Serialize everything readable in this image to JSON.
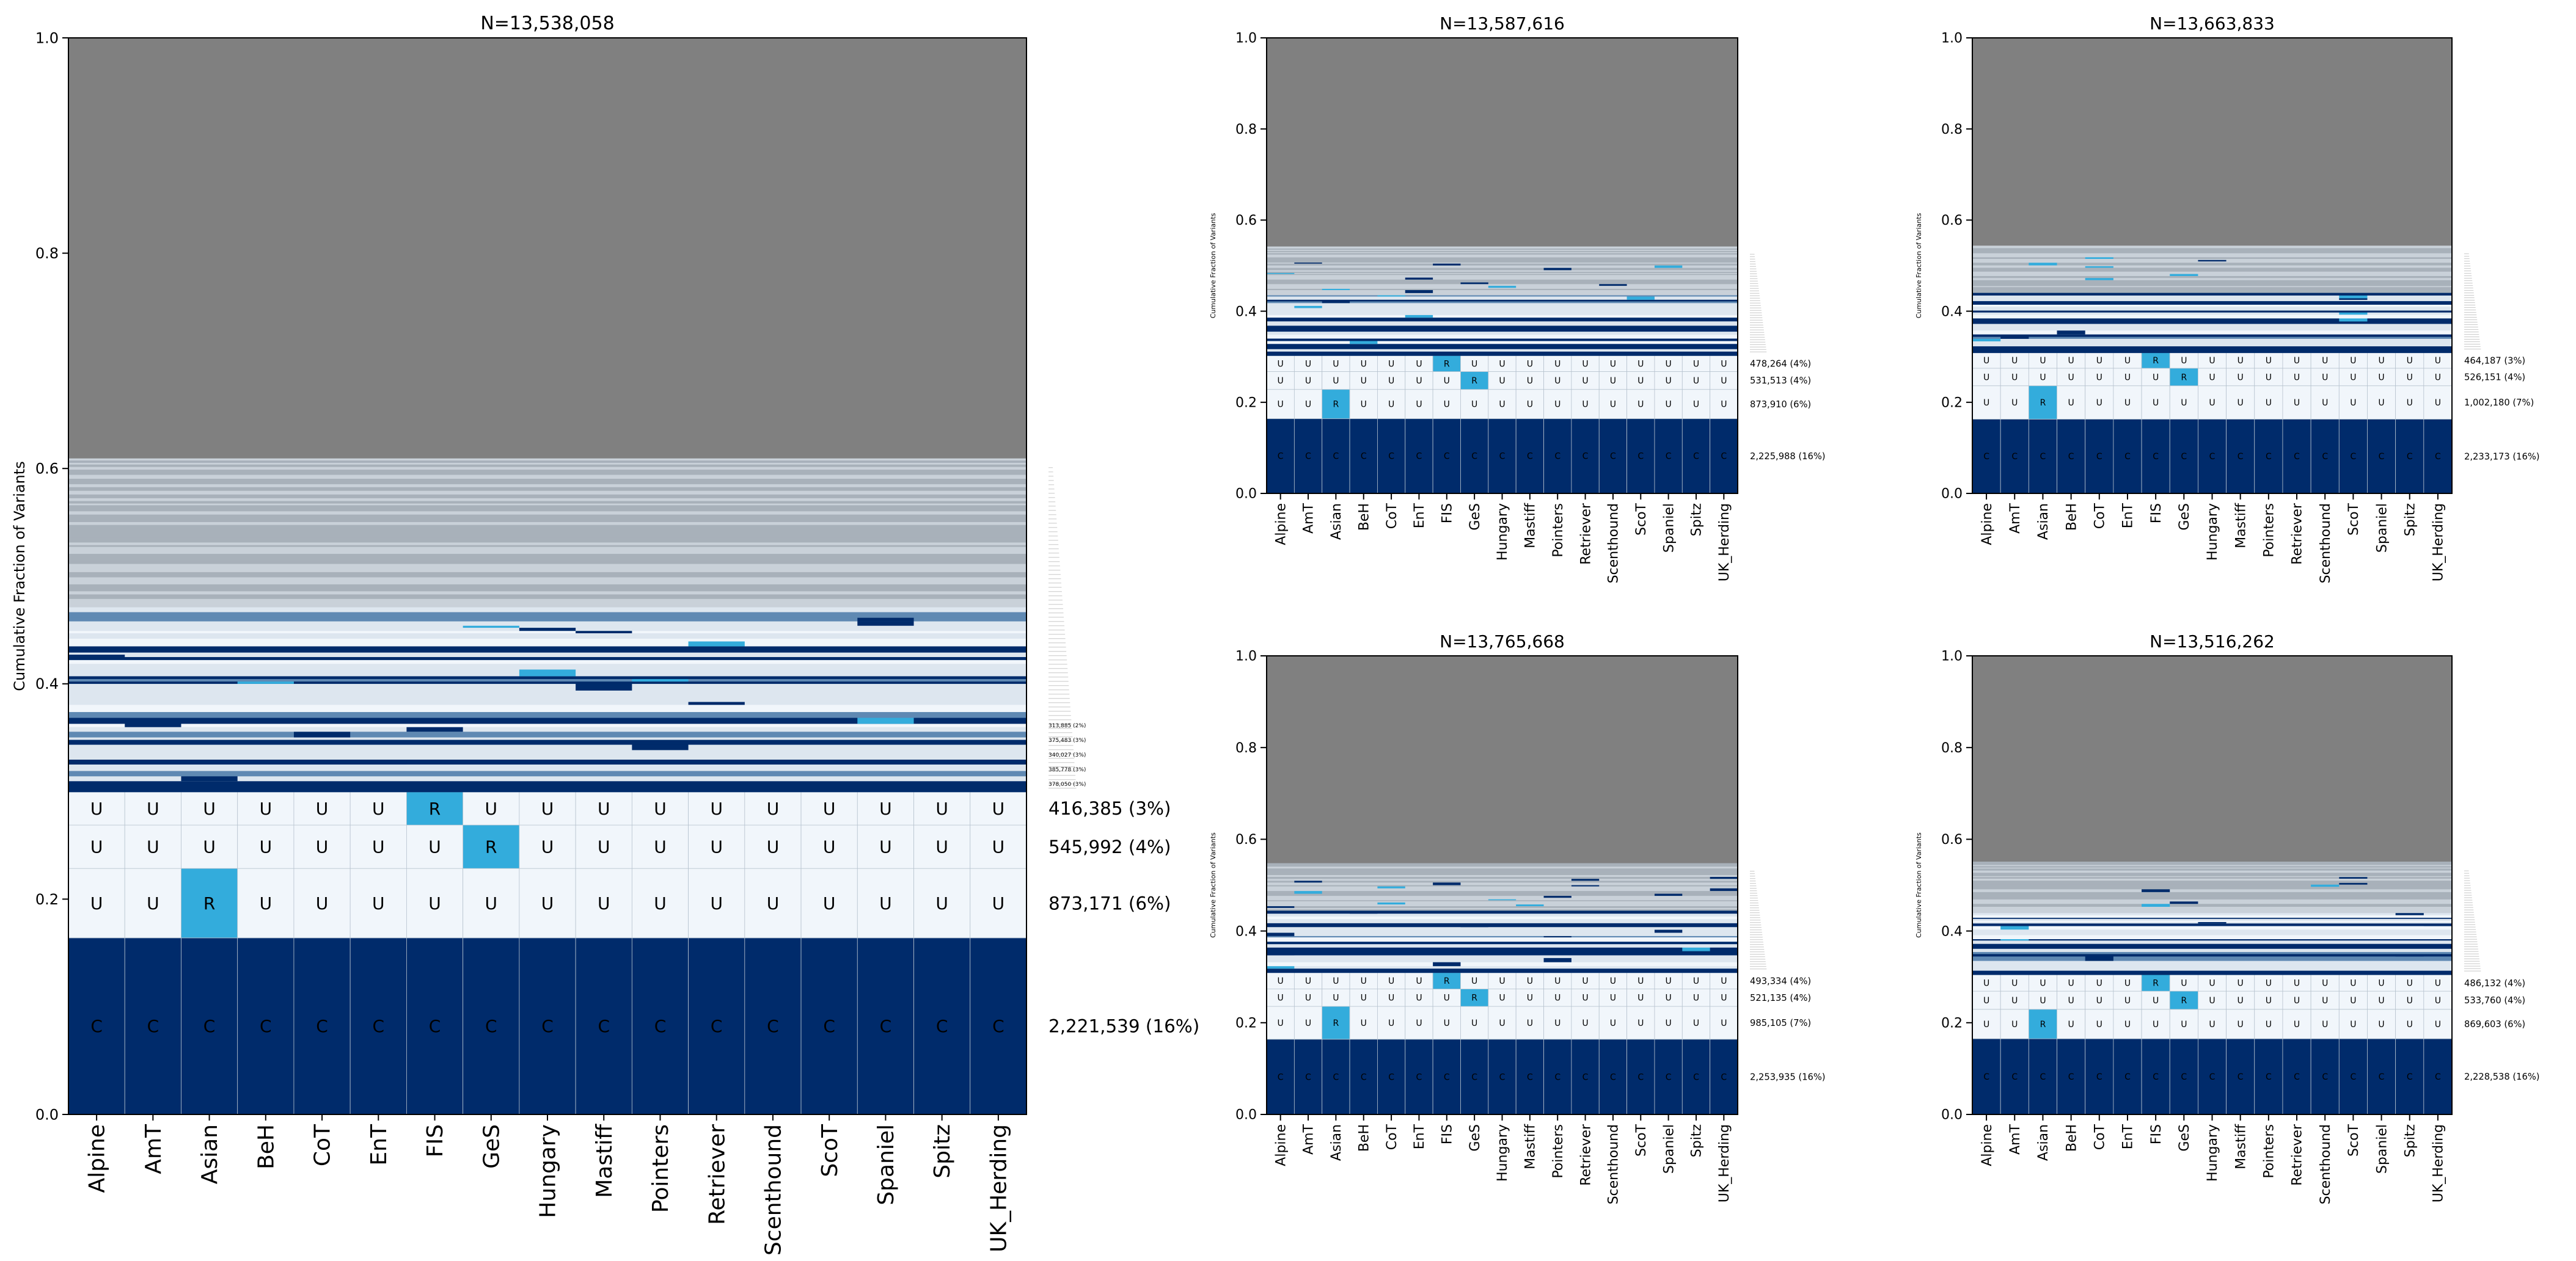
{
  "figure": {
    "ylabel": "Cumulative Fraction of Variants",
    "yticks": [
      "0.0",
      "0.2",
      "0.4",
      "0.6",
      "0.8",
      "1.0"
    ]
  },
  "chart_data": [
    {
      "type": "stacked-bar-heatmap",
      "title": "N=13,538,058",
      "ylabel": "Cumulative Fraction of Variants",
      "ylim": [
        0,
        1
      ],
      "categories": [
        "Alpine",
        "AmT",
        "Asian",
        "BeH",
        "CoT",
        "EnT",
        "FIS",
        "GeS",
        "Hungary",
        "Mastiff",
        "Pointers",
        "Retriever",
        "Scenthound",
        "ScoT",
        "Spaniel",
        "Spitz",
        "UK_Herding"
      ],
      "segments": [
        {
          "name": "common",
          "fraction": 0.164,
          "label": "2,221,539 (16%)",
          "pattern": "all-C",
          "letter": "C"
        },
        {
          "name": "asian-specific",
          "fraction": 0.0645,
          "label": "873,171 (6%)",
          "pattern": "R-at-Asian",
          "letter": "U",
          "rare_index": 2
        },
        {
          "name": "ges-specific",
          "fraction": 0.0403,
          "label": "545,992 (4%)",
          "pattern": "R-at-GeS",
          "letter": "U",
          "rare_index": 7
        },
        {
          "name": "fis-specific",
          "fraction": 0.0308,
          "label": "416,385 (3%)",
          "pattern": "R-at-FIS",
          "letter": "U",
          "rare_index": 6
        }
      ],
      "small_labels": [
        "378,050 (3%)",
        "385,778 (3%)",
        "340,027 (3%)",
        "375,483 (3%)",
        "313,885 (2%)"
      ]
    },
    {
      "type": "stacked-bar-heatmap",
      "title": "N=13,587,616",
      "ylabel": "Cumulative Fraction of Variants",
      "ylim": [
        0,
        1
      ],
      "categories": [
        "Alpine",
        "AmT",
        "Asian",
        "BeH",
        "CoT",
        "EnT",
        "FIS",
        "GeS",
        "Hungary",
        "Mastiff",
        "Pointers",
        "Retriever",
        "Scenthound",
        "ScoT",
        "Spaniel",
        "Spitz",
        "UK_Herding"
      ],
      "segments": [
        {
          "name": "common",
          "fraction": 0.164,
          "label": "2,225,988 (16%)",
          "pattern": "all-C",
          "letter": "C"
        },
        {
          "name": "asian-specific",
          "fraction": 0.0643,
          "label": "873,910 (6%)",
          "pattern": "R-at-Asian",
          "letter": "U",
          "rare_index": 2
        },
        {
          "name": "ges-specific",
          "fraction": 0.0391,
          "label": "531,513 (4%)",
          "pattern": "R-at-GeS",
          "letter": "U",
          "rare_index": 7
        },
        {
          "name": "fis-specific",
          "fraction": 0.0352,
          "label": "478,264 (4%)",
          "pattern": "R-at-FIS",
          "letter": "U",
          "rare_index": 6
        }
      ]
    },
    {
      "type": "stacked-bar-heatmap",
      "title": "N=13,663,833",
      "ylabel": "Cumulative Fraction of Variants",
      "ylim": [
        0,
        1
      ],
      "categories": [
        "Alpine",
        "AmT",
        "Asian",
        "BeH",
        "CoT",
        "EnT",
        "FIS",
        "GeS",
        "Hungary",
        "Mastiff",
        "Pointers",
        "Retriever",
        "Scenthound",
        "ScoT",
        "Spaniel",
        "Spitz",
        "UK_Herding"
      ],
      "segments": [
        {
          "name": "common",
          "fraction": 0.163,
          "label": "2,233,173 (16%)",
          "pattern": "all-C",
          "letter": "C"
        },
        {
          "name": "asian-specific",
          "fraction": 0.0733,
          "label": "1,002,180 (7%)",
          "pattern": "R-at-Asian",
          "letter": "U",
          "rare_index": 2
        },
        {
          "name": "ges-specific",
          "fraction": 0.0385,
          "label": "526,151 (4%)",
          "pattern": "R-at-GeS",
          "letter": "U",
          "rare_index": 7
        },
        {
          "name": "fis-specific",
          "fraction": 0.034,
          "label": "464,187 (3%)",
          "pattern": "R-at-FIS",
          "letter": "U",
          "rare_index": 6
        }
      ]
    },
    {
      "type": "stacked-bar-heatmap",
      "title": "N=13,765,668",
      "ylabel": "Cumulative Fraction of Variants",
      "ylim": [
        0,
        1
      ],
      "categories": [
        "Alpine",
        "AmT",
        "Asian",
        "BeH",
        "CoT",
        "EnT",
        "FIS",
        "GeS",
        "Hungary",
        "Mastiff",
        "Pointers",
        "Retriever",
        "Scenthound",
        "ScoT",
        "Spaniel",
        "Spitz",
        "UK_Herding"
      ],
      "segments": [
        {
          "name": "common",
          "fraction": 0.164,
          "label": "2,253,935 (16%)",
          "pattern": "all-C",
          "letter": "C"
        },
        {
          "name": "asian-specific",
          "fraction": 0.0716,
          "label": "985,105 (7%)",
          "pattern": "R-at-Asian",
          "letter": "U",
          "rare_index": 2
        },
        {
          "name": "ges-specific",
          "fraction": 0.0379,
          "label": "521,135 (4%)",
          "pattern": "R-at-GeS",
          "letter": "U",
          "rare_index": 7
        },
        {
          "name": "fis-specific",
          "fraction": 0.0358,
          "label": "493,334 (4%)",
          "pattern": "R-at-FIS",
          "letter": "U",
          "rare_index": 6
        }
      ]
    },
    {
      "type": "stacked-bar-heatmap",
      "title": "N=13,516,262",
      "ylabel": "Cumulative Fraction of Variants",
      "ylim": [
        0,
        1
      ],
      "categories": [
        "Alpine",
        "AmT",
        "Asian",
        "BeH",
        "CoT",
        "EnT",
        "FIS",
        "GeS",
        "Hungary",
        "Mastiff",
        "Pointers",
        "Retriever",
        "Scenthound",
        "ScoT",
        "Spaniel",
        "Spitz",
        "UK_Herding"
      ],
      "segments": [
        {
          "name": "common",
          "fraction": 0.165,
          "label": "2,228,538 (16%)",
          "pattern": "all-C",
          "letter": "C"
        },
        {
          "name": "asian-specific",
          "fraction": 0.0643,
          "label": "869,603 (6%)",
          "pattern": "R-at-Asian",
          "letter": "U",
          "rare_index": 2
        },
        {
          "name": "ges-specific",
          "fraction": 0.0395,
          "label": "533,760 (4%)",
          "pattern": "R-at-GeS",
          "letter": "U",
          "rare_index": 7
        },
        {
          "name": "fis-specific",
          "fraction": 0.036,
          "label": "486,132 (4%)",
          "pattern": "R-at-FIS",
          "letter": "U",
          "rare_index": 6
        }
      ]
    }
  ],
  "colors": {
    "common": "#002b6b",
    "rare": "#33acdc",
    "unique": "#f1f6fb",
    "unassigned": "#808080",
    "mid": "#5f89b3",
    "light": "#dde6ef",
    "grid": "#b7c3cf"
  }
}
